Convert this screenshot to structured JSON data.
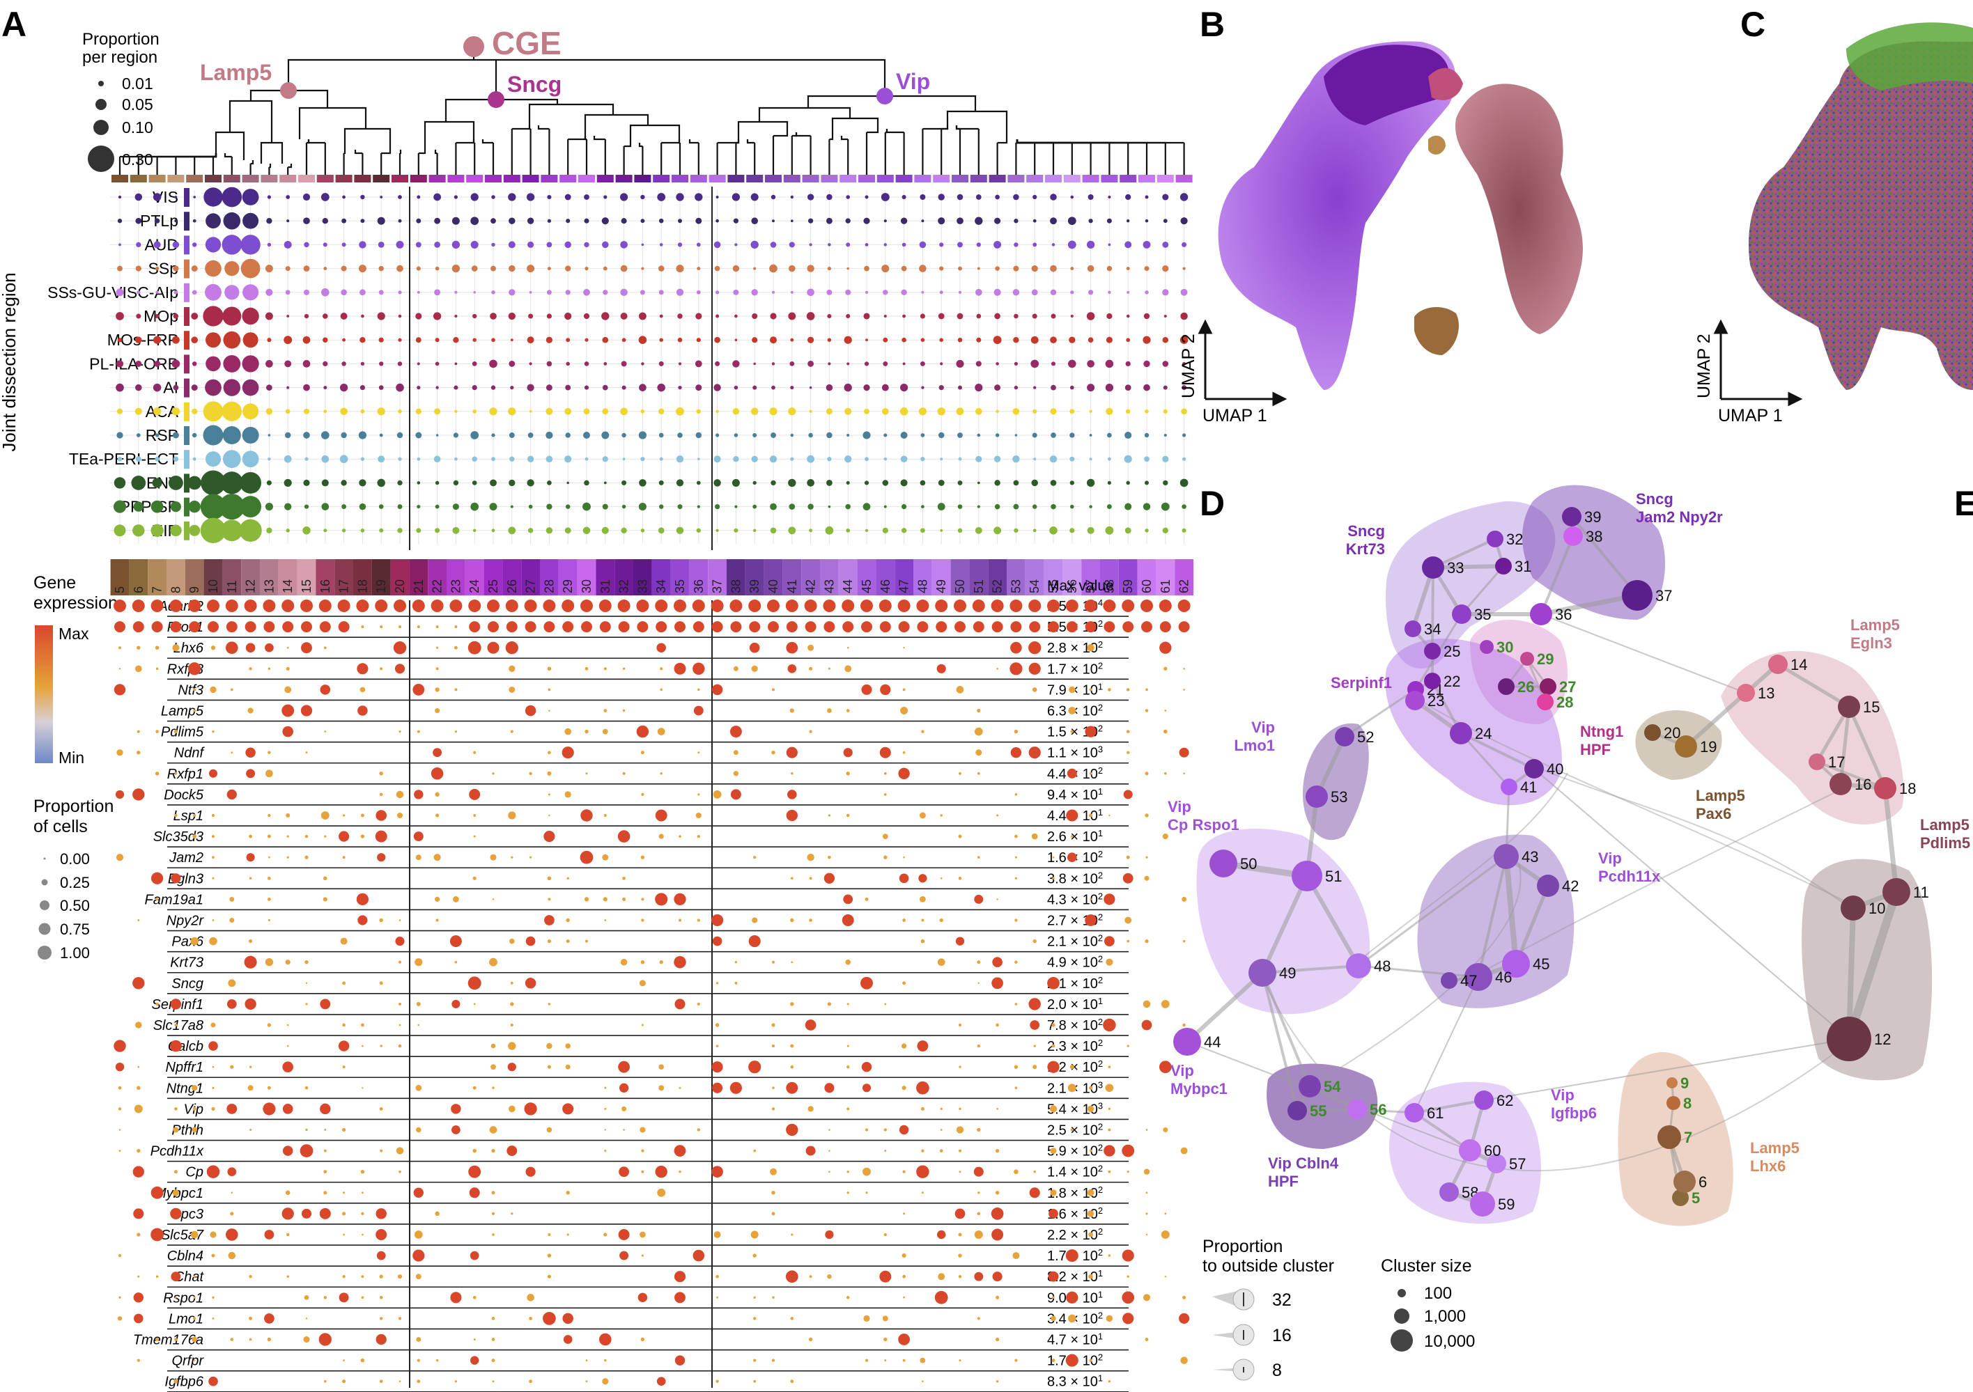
{
  "panel_labels": [
    "A",
    "B",
    "C",
    "D",
    "E"
  ],
  "colors": {
    "cge": "#c27b86",
    "lamp5": "#c27b86",
    "sncg": "#a8348e",
    "vip": "#9b4fd6",
    "gene_high": "#d9472b",
    "gene_mid": "#e7a33a",
    "gene_low": "#6d88c8",
    "label_green": "#3e8a2a",
    "leaf_colors": [
      "#7a5230",
      "#8a6a3a",
      "#b08a5a",
      "#c49a7a",
      "#9d6e5a",
      "#6e3c47",
      "#8a5066",
      "#a06a7e",
      "#b37d90",
      "#c88c9c",
      "#d8a0ac",
      "#a44266",
      "#8a3a4e",
      "#7a2f40",
      "#5a2a33",
      "#9e2a5b",
      "#8a1f68",
      "#a12fb0",
      "#b33fd0",
      "#c04fe0",
      "#a02cc8",
      "#8c25b8",
      "#7f20ad",
      "#9b3ad0",
      "#b152e2",
      "#c868ee",
      "#7a1fa6",
      "#6d1b96",
      "#5e1788",
      "#8036c2",
      "#9548d2",
      "#a85cde",
      "#b86fe6",
      "#5d2e8a",
      "#6a3a9c",
      "#7a46ac",
      "#8a54bc",
      "#9a62cc",
      "#aa70da",
      "#ba80e6",
      "#a660e0",
      "#9650d6",
      "#8640cc",
      "#b070ea",
      "#c080ef",
      "#8e5cc0",
      "#7e4ab0",
      "#6e3aa0",
      "#9e6ad0",
      "#ae7ae0",
      "#be8aee",
      "#cc9af2",
      "#b468e8",
      "#a458de",
      "#9448d4",
      "#c878f0",
      "#d488f4",
      "#bc5ce4",
      "#ac4cda",
      "#9c3cd0",
      "#d298f4",
      "#e0a8f8"
    ],
    "region_colors": [
      "#4b2a8a",
      "#3a2a6a",
      "#7d4fd0",
      "#d2794a",
      "#c37ce6",
      "#a82c4a",
      "#c33a2a",
      "#9a2a66",
      "#8a2a6a",
      "#f0d52e",
      "#4a7f9a",
      "#8ac2de",
      "#2e5a2a",
      "#3d7a2e",
      "#8ab83a"
    ]
  },
  "panel_a": {
    "dendrogram": {
      "root_label": "CGE",
      "branch_labels": [
        "Lamp5",
        "Sncg",
        "Vip"
      ]
    },
    "size_legend": {
      "title_line1": "Proportion",
      "title_line2": "per region",
      "values": [
        "0.01",
        "0.05",
        "0.10",
        "0.30"
      ]
    },
    "y_axis_title": "Joint dissection region",
    "regions": [
      "VIS",
      "PTLp",
      "AUD",
      "SSp",
      "SSs-GU-VISC-AIp",
      "MOp",
      "MOs-FRP",
      "PL-ILA-ORB",
      "AI",
      "ACA",
      "RSP",
      "TEa-PERI-ECT",
      "ENT",
      "PPP-SP",
      "HIP"
    ],
    "cluster_numbers": [
      "5",
      "6",
      "7",
      "8",
      "9",
      "10",
      "11",
      "12",
      "13",
      "14",
      "15",
      "16",
      "17",
      "18",
      "19",
      "20",
      "21",
      "22",
      "23",
      "24",
      "25",
      "26",
      "27",
      "28",
      "29",
      "30",
      "31",
      "32",
      "33",
      "34",
      "35",
      "36",
      "37",
      "38",
      "39",
      "40",
      "41",
      "42",
      "43",
      "44",
      "45",
      "46",
      "47",
      "48",
      "49",
      "50",
      "51",
      "52",
      "53",
      "54",
      "55",
      "56",
      "57",
      "58",
      "59",
      "60",
      "61",
      "62"
    ],
    "max_value_header": "Max value",
    "gene_legend": {
      "title_line1": "Gene",
      "title_line2": "expression",
      "max_label": "Max",
      "min_label": "Min"
    },
    "cell_legend": {
      "title_line1": "Proportion",
      "title_line2": "of cells",
      "values": [
        "0.00",
        "0.25",
        "0.50",
        "0.75",
        "1.00"
      ]
    },
    "genes": [
      {
        "name": "Adarb2",
        "max": "1.5 × 10",
        "exp": "4"
      },
      {
        "name": "Prox1",
        "max": "5.5 × 10",
        "exp": "2"
      },
      {
        "name": "Lhx6",
        "max": "2.8 × 10",
        "exp": "2"
      },
      {
        "name": "Rxfp3",
        "max": "1.7 × 10",
        "exp": "2"
      },
      {
        "name": "Ntf3",
        "max": "7.9 × 10",
        "exp": "1"
      },
      {
        "name": "Lamp5",
        "max": "6.3 × 10",
        "exp": "2"
      },
      {
        "name": "Pdlim5",
        "max": "1.5 × 10",
        "exp": "2"
      },
      {
        "name": "Ndnf",
        "max": "1.1 × 10",
        "exp": "3"
      },
      {
        "name": "Rxfp1",
        "max": "4.4 × 10",
        "exp": "2"
      },
      {
        "name": "Dock5",
        "max": "9.4 × 10",
        "exp": "1"
      },
      {
        "name": "Lsp1",
        "max": "4.4 × 10",
        "exp": "1"
      },
      {
        "name": "Slc35d3",
        "max": "2.6 × 10",
        "exp": "1"
      },
      {
        "name": "Jam2",
        "max": "1.6 × 10",
        "exp": "2"
      },
      {
        "name": "Egln3",
        "max": "3.8 × 10",
        "exp": "2"
      },
      {
        "name": "Fam19a1",
        "max": "4.3 × 10",
        "exp": "2"
      },
      {
        "name": "Npy2r",
        "max": "2.7 × 10",
        "exp": "2"
      },
      {
        "name": "Pax6",
        "max": "2.1 × 10",
        "exp": "2"
      },
      {
        "name": "Krt73",
        "max": "4.9 × 10",
        "exp": "2"
      },
      {
        "name": "Sncg",
        "max": "2.1 × 10",
        "exp": "2"
      },
      {
        "name": "Serpinf1",
        "max": "2.0 × 10",
        "exp": "1"
      },
      {
        "name": "Slc17a8",
        "max": "7.8 × 10",
        "exp": "2"
      },
      {
        "name": "Calcb",
        "max": "2.3 × 10",
        "exp": "2"
      },
      {
        "name": "Npffr1",
        "max": "1.2 × 10",
        "exp": "2"
      },
      {
        "name": "Ntng1",
        "max": "2.1 × 10",
        "exp": "3"
      },
      {
        "name": "Vip",
        "max": "5.4 × 10",
        "exp": "3"
      },
      {
        "name": "Pthlh",
        "max": "2.5 × 10",
        "exp": "2"
      },
      {
        "name": "Pcdh11x",
        "max": "5.9 × 10",
        "exp": "2"
      },
      {
        "name": "Cp",
        "max": "1.4 × 10",
        "exp": "2"
      },
      {
        "name": "Mybpc1",
        "max": "1.8 × 10",
        "exp": "2"
      },
      {
        "name": "Gpc3",
        "max": "1.6 × 10",
        "exp": "2"
      },
      {
        "name": "Slc5a7",
        "max": "2.2 × 10",
        "exp": "2"
      },
      {
        "name": "Cbln4",
        "max": "1.7 × 10",
        "exp": "2"
      },
      {
        "name": "Chat",
        "max": "8.2 × 10",
        "exp": "1"
      },
      {
        "name": "Rspo1",
        "max": "9.0 × 10",
        "exp": "1"
      },
      {
        "name": "Lmo1",
        "max": "3.4 × 10",
        "exp": "2"
      },
      {
        "name": "Tmem176a",
        "max": "4.7 × 10",
        "exp": "1"
      },
      {
        "name": "Qrfpr",
        "max": "1.7 × 10",
        "exp": "2"
      },
      {
        "name": "Igfbp6",
        "max": "8.3 × 10",
        "exp": "1"
      }
    ]
  },
  "panel_b": {
    "xlabel": "UMAP 1",
    "ylabel": "UMAP 2"
  },
  "panel_c": {
    "xlabel": "UMAP 1",
    "ylabel": "UMAP 2"
  },
  "panel_d": {
    "groups": [
      {
        "line1": "Sncg",
        "line2": "Krt73"
      },
      {
        "line1": "Sncg",
        "line2": "Jam2 Npy2r"
      },
      {
        "line1": "Serpinf1",
        "line2": ""
      },
      {
        "line1": "Ntng1",
        "line2": "HPF"
      },
      {
        "line1": "Lamp5",
        "line2": "Egln3"
      },
      {
        "line1": "Vip",
        "line2": "Lmo1"
      },
      {
        "line1": "Lamp5",
        "line2": "Pax6"
      },
      {
        "line1": "Lamp5",
        "line2": "Pdlim5"
      },
      {
        "line1": "Vip",
        "line2": "Cp Rspo1"
      },
      {
        "line1": "Vip",
        "line2": "Pcdh11x"
      },
      {
        "line1": "Vip",
        "line2": "Mybpc1"
      },
      {
        "line1": "Vip Cbln4",
        "line2": "HPF"
      },
      {
        "line1": "Vip",
        "line2": "Igfbp6"
      },
      {
        "line1": "Lamp5",
        "line2": "Lhx6"
      }
    ],
    "legend_outside": {
      "title_line1": "Proportion",
      "title_line2": "to outside cluster",
      "values": [
        "32",
        "16",
        "8"
      ]
    },
    "legend_size": {
      "title": "Cluster size",
      "values": [
        "100",
        "1,000",
        "10,000"
      ]
    }
  }
}
